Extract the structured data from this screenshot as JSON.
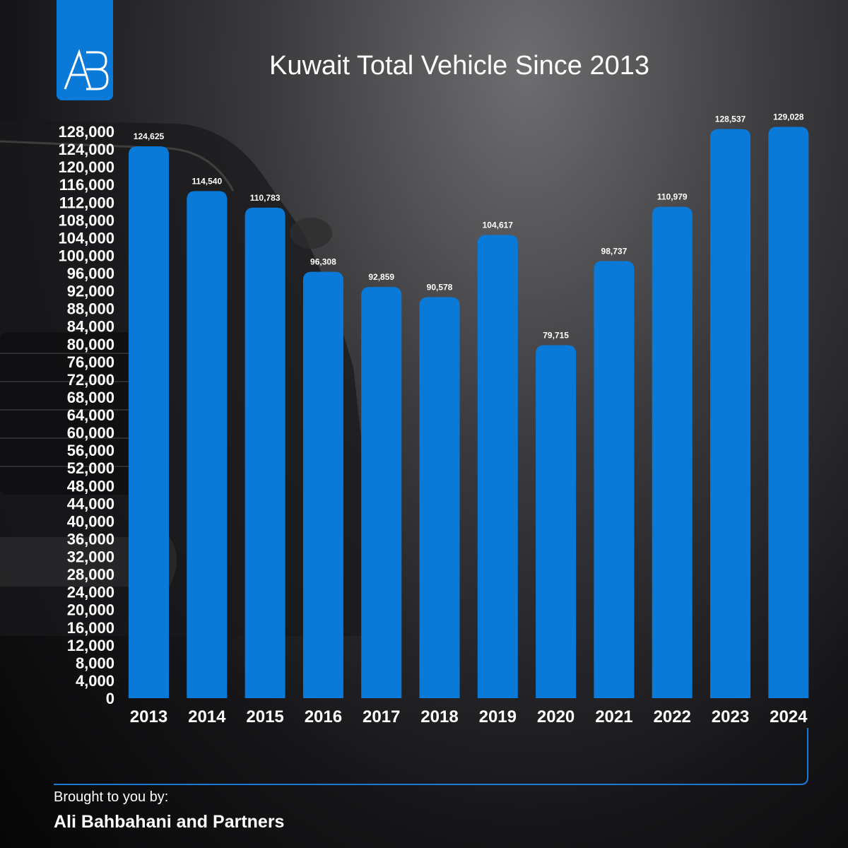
{
  "title": "Kuwait Total Vehicle Since 2013",
  "logo": {
    "icon": "ab-monogram-logo",
    "text": "AB",
    "color": "#0a7ad8"
  },
  "credit": {
    "line1": "Brought to you by:",
    "line2": "Ali Bahbahani and Partners"
  },
  "colors": {
    "bar": "#0a7ad8",
    "accent_line": "#1e78d6",
    "text": "#ffffff"
  },
  "chart_data": {
    "type": "bar",
    "title": "Kuwait Total Vehicle Since 2013",
    "xlabel": "",
    "ylabel": "",
    "categories": [
      "2013",
      "2014",
      "2015",
      "2016",
      "2017",
      "2018",
      "2019",
      "2020",
      "2021",
      "2022",
      "2023",
      "2024"
    ],
    "values": [
      124625,
      114540,
      110783,
      96308,
      92859,
      90578,
      104617,
      79715,
      98737,
      110979,
      128537,
      129028
    ],
    "value_labels": [
      "124,625",
      "114,540",
      "110,783",
      "96,308",
      "92,859",
      "90,578",
      "104,617",
      "79,715",
      "98,737",
      "110,979",
      "128,537",
      "129,028"
    ],
    "yticks": [
      "0",
      "4,000",
      "8,000",
      "12,000",
      "16,000",
      "20,000",
      "24,000",
      "28,000",
      "32,000",
      "36,000",
      "40,000",
      "44,000",
      "48,000",
      "52,000",
      "56,000",
      "60,000",
      "64,000",
      "68,000",
      "72,000",
      "76,000",
      "80,000",
      "84,000",
      "88,000",
      "92,000",
      "96,000",
      "100,000",
      "104,000",
      "108,000",
      "112,000",
      "116,000",
      "120,000",
      "124,000",
      "128,000"
    ],
    "ylim": [
      0,
      128000
    ],
    "grid": false,
    "legend": "none"
  }
}
